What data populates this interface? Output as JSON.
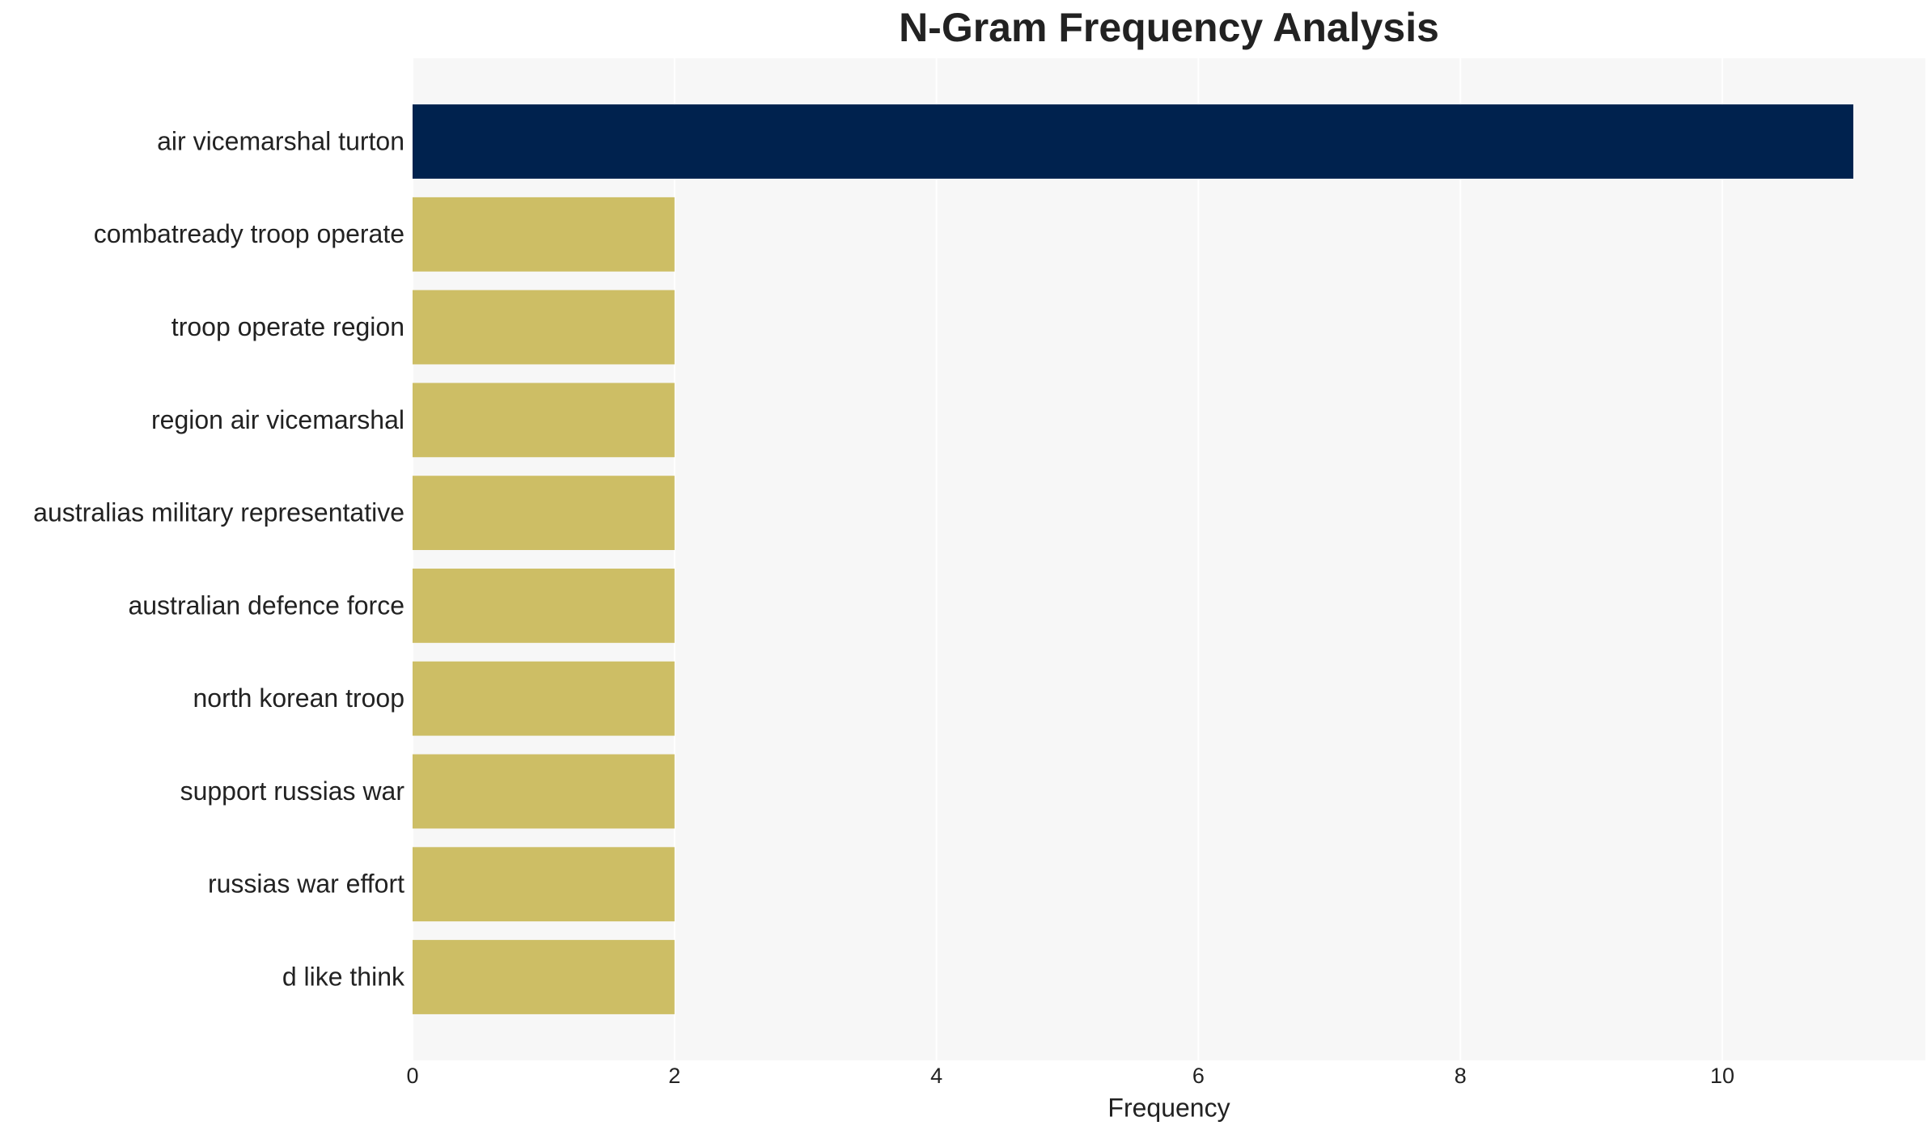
{
  "chart_data": {
    "type": "bar",
    "orientation": "horizontal",
    "title": "N-Gram Frequency Analysis",
    "x_label": "Frequency",
    "categories": [
      "air vicemarshal turton",
      "combatready troop operate",
      "troop operate region",
      "region air vicemarshal",
      "australias military representative",
      "australian defence force",
      "north korean troop",
      "support russias war",
      "russias war effort",
      "d like think"
    ],
    "values": [
      11,
      2,
      2,
      2,
      2,
      2,
      2,
      2,
      2,
      2
    ],
    "colors": [
      "#00224e",
      "#cdbe65",
      "#cdbe65",
      "#cdbe65",
      "#cdbe65",
      "#cdbe65",
      "#cdbe65",
      "#cdbe65",
      "#cdbe65",
      "#cdbe65"
    ],
    "xlim": [
      0,
      11.55
    ],
    "xticks": [
      0,
      2,
      4,
      6,
      8,
      10
    ],
    "grid": true
  }
}
